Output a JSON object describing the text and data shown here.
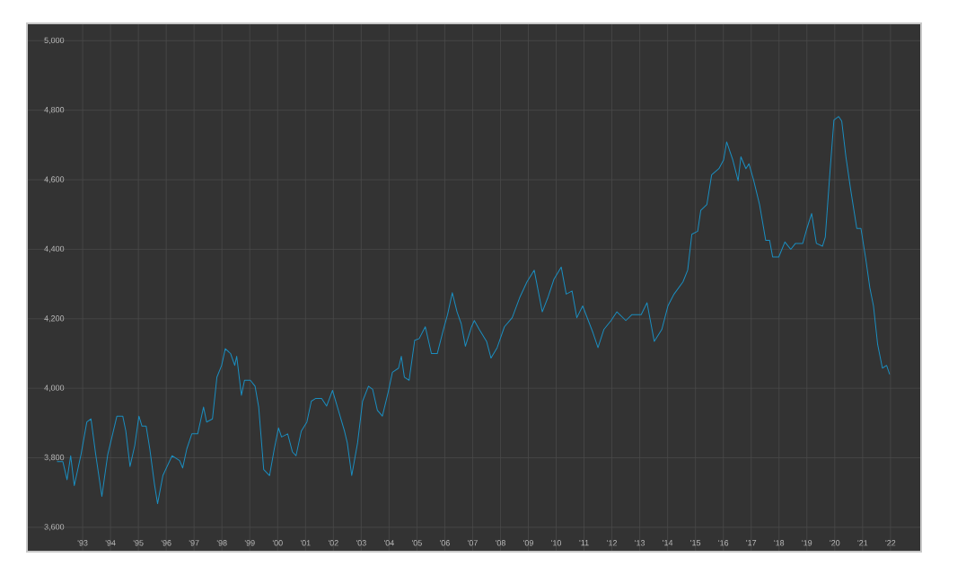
{
  "chart_data": {
    "type": "line",
    "xlim": [
      1991.0,
      2023.1
    ],
    "ylim": [
      3530,
      5050
    ],
    "yticks": [
      {
        "value": 3600,
        "label": "3,600"
      },
      {
        "value": 3800,
        "label": "3,800"
      },
      {
        "value": 4000,
        "label": "4,000"
      },
      {
        "value": 4200,
        "label": "4,200"
      },
      {
        "value": 4400,
        "label": "4,400"
      },
      {
        "value": 4600,
        "label": "4,600"
      },
      {
        "value": 4800,
        "label": "4,800"
      },
      {
        "value": 5000,
        "label": "5,000"
      }
    ],
    "xticks": [
      {
        "value": 1993,
        "label": "'93"
      },
      {
        "value": 1994,
        "label": "'94"
      },
      {
        "value": 1995,
        "label": "'95"
      },
      {
        "value": 1996,
        "label": "'96"
      },
      {
        "value": 1997,
        "label": "'97"
      },
      {
        "value": 1998,
        "label": "'98"
      },
      {
        "value": 1999,
        "label": "'99"
      },
      {
        "value": 2000,
        "label": "'00"
      },
      {
        "value": 2001,
        "label": "'01"
      },
      {
        "value": 2002,
        "label": "'02"
      },
      {
        "value": 2003,
        "label": "'03"
      },
      {
        "value": 2004,
        "label": "'04"
      },
      {
        "value": 2005,
        "label": "'05"
      },
      {
        "value": 2006,
        "label": "'06"
      },
      {
        "value": 2007,
        "label": "'07"
      },
      {
        "value": 2008,
        "label": "'08"
      },
      {
        "value": 2009,
        "label": "'09"
      },
      {
        "value": 2010,
        "label": "'10"
      },
      {
        "value": 2011,
        "label": "'11"
      },
      {
        "value": 2012,
        "label": "'12"
      },
      {
        "value": 2013,
        "label": "'13"
      },
      {
        "value": 2014,
        "label": "'14"
      },
      {
        "value": 2015,
        "label": "'15"
      },
      {
        "value": 2016,
        "label": "'16"
      },
      {
        "value": 2017,
        "label": "'17"
      },
      {
        "value": 2018,
        "label": "'18"
      },
      {
        "value": 2019,
        "label": "'19"
      },
      {
        "value": 2020,
        "label": "'20"
      },
      {
        "value": 2021,
        "label": "'21"
      },
      {
        "value": 2022,
        "label": "'22"
      }
    ],
    "grid": true,
    "marker": "none",
    "line_style": "solid",
    "series": [
      {
        "color": "#1b8ec0",
        "x": [
          1992.08,
          1992.29,
          1992.44,
          1992.57,
          1992.7,
          1992.94,
          1993.15,
          1993.3,
          1993.47,
          1993.69,
          1993.9,
          1994.23,
          1994.44,
          1994.55,
          1994.7,
          1994.87,
          1995.02,
          1995.13,
          1995.28,
          1995.41,
          1995.58,
          1995.69,
          1995.88,
          1996.21,
          1996.48,
          1996.59,
          1996.74,
          1996.92,
          1997.13,
          1997.34,
          1997.45,
          1997.66,
          1997.82,
          1997.99,
          1998.12,
          1998.31,
          1998.46,
          1998.53,
          1998.7,
          1998.81,
          1999.02,
          1999.19,
          1999.32,
          1999.5,
          1999.71,
          1999.88,
          2000.03,
          2000.14,
          2000.36,
          2000.53,
          2000.66,
          2000.85,
          2001.05,
          2001.21,
          2001.37,
          2001.58,
          2001.76,
          2001.97,
          2002.18,
          2002.4,
          2002.5,
          2002.66,
          2002.87,
          2003.05,
          2003.26,
          2003.41,
          2003.58,
          2003.76,
          2003.97,
          2004.12,
          2004.34,
          2004.44,
          2004.55,
          2004.72,
          2004.92,
          2005.08,
          2005.3,
          2005.52,
          2005.73,
          2005.95,
          2006.1,
          2006.27,
          2006.44,
          2006.59,
          2006.74,
          2006.96,
          2007.06,
          2007.24,
          2007.5,
          2007.66,
          2007.88,
          2008.14,
          2008.42,
          2008.7,
          2008.95,
          2009.21,
          2009.5,
          2009.71,
          2009.92,
          2010.18,
          2010.36,
          2010.57,
          2010.74,
          2010.95,
          2011.32,
          2011.5,
          2011.71,
          2011.97,
          2012.18,
          2012.5,
          2012.72,
          2013.05,
          2013.26,
          2013.52,
          2013.79,
          2014.01,
          2014.23,
          2014.55,
          2014.72,
          2014.87,
          2015.08,
          2015.19,
          2015.41,
          2015.58,
          2015.84,
          2016.01,
          2016.12,
          2016.34,
          2016.53,
          2016.63,
          2016.81,
          2016.92,
          2017.08,
          2017.3,
          2017.52,
          2017.66,
          2017.77,
          2017.99,
          2018.21,
          2018.42,
          2018.59,
          2018.85,
          2019.0,
          2019.17,
          2019.34,
          2019.56,
          2019.66,
          2019.82,
          2019.97,
          2020.14,
          2020.25,
          2020.4,
          2020.57,
          2020.79,
          2020.94,
          2021.11,
          2021.26,
          2021.39,
          2021.54,
          2021.71,
          2021.86,
          2021.97
        ],
        "values": [
          3789,
          3789,
          3737,
          3806,
          3720,
          3809,
          3903,
          3912,
          3809,
          3689,
          3809,
          3920,
          3920,
          3877,
          3775,
          3835,
          3920,
          3891,
          3891,
          3826,
          3723,
          3668,
          3749,
          3806,
          3792,
          3771,
          3826,
          3869,
          3869,
          3946,
          3903,
          3912,
          4032,
          4066,
          4114,
          4100,
          4066,
          4092,
          3980,
          4023,
          4023,
          4006,
          3946,
          3766,
          3749,
          3826,
          3886,
          3860,
          3869,
          3817,
          3806,
          3877,
          3903,
          3963,
          3971,
          3971,
          3949,
          3994,
          3937,
          3877,
          3843,
          3749,
          3843,
          3963,
          4006,
          3997,
          3937,
          3920,
          3989,
          4046,
          4058,
          4092,
          4032,
          4023,
          4138,
          4143,
          4177,
          4100,
          4100,
          4169,
          4212,
          4275,
          4220,
          4186,
          4121,
          4177,
          4195,
          4169,
          4135,
          4087,
          4117,
          4177,
          4203,
          4263,
          4306,
          4340,
          4220,
          4263,
          4314,
          4349,
          4271,
          4280,
          4203,
          4237,
          4160,
          4117,
          4169,
          4195,
          4220,
          4195,
          4212,
          4212,
          4246,
          4135,
          4169,
          4237,
          4271,
          4306,
          4340,
          4443,
          4452,
          4512,
          4529,
          4614,
          4632,
          4657,
          4709,
          4657,
          4597,
          4666,
          4632,
          4646,
          4601,
          4529,
          4426,
          4426,
          4378,
          4378,
          4421,
          4400,
          4417,
          4417,
          4460,
          4503,
          4417,
          4409,
          4435,
          4614,
          4772,
          4782,
          4769,
          4666,
          4572,
          4460,
          4460,
          4374,
          4289,
          4237,
          4126,
          4058,
          4066,
          4040
        ]
      }
    ]
  }
}
